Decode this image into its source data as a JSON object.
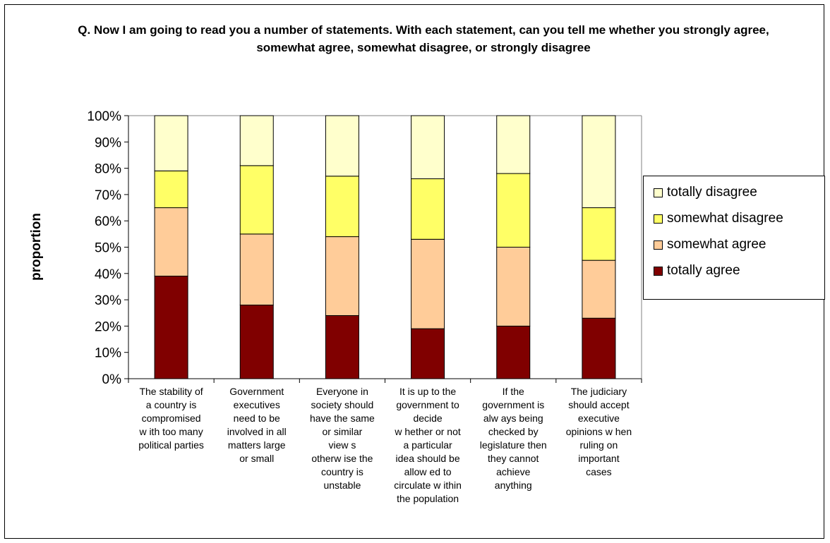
{
  "chart_data": {
    "type": "bar",
    "stacked": true,
    "title": "Q. Now I am going to read you a number of statements. With each statement, can you tell me whether you strongly agree, somewhat agree, somewhat disagree, or strongly disagree",
    "xlabel": "",
    "ylabel": "proportion",
    "ylim": [
      0,
      100
    ],
    "yticks": [
      "0%",
      "10%",
      "20%",
      "30%",
      "40%",
      "50%",
      "60%",
      "70%",
      "80%",
      "90%",
      "100%"
    ],
    "grid": false,
    "legend_position": "right",
    "categories": [
      "The stability of a country is compromised w ith too many political parties",
      "Government executives need to be involved in all matters large or small",
      "Everyone in society should have the same or similar view s otherw ise the country is unstable",
      "It is up to the government to decide w hether or not a particular idea should be allow ed to circulate w ithin the population",
      "If the government is alw ays being checked by legislature then they cannot achieve anything",
      "The judiciary should accept executive opinions w hen ruling on important cases"
    ],
    "category_lines": [
      [
        "The stability of",
        "a country is",
        "compromised",
        "w ith too many",
        "political parties"
      ],
      [
        "Government",
        "executives",
        "need to be",
        "involved in all",
        "matters large",
        "or small"
      ],
      [
        "Everyone in",
        "society should",
        "have the same",
        "or similar",
        "view s",
        "otherw ise the",
        "country is",
        "unstable"
      ],
      [
        "It is up to the",
        "government to",
        "decide",
        "w hether or not",
        "a particular",
        "idea should be",
        "allow ed to",
        "circulate w ithin",
        "the population"
      ],
      [
        "If the",
        "government is",
        "alw ays being",
        "checked by",
        "legislature then",
        "they cannot",
        "achieve",
        "anything"
      ],
      [
        "The judiciary",
        "should accept",
        "executive",
        "opinions w hen",
        "ruling on",
        "important",
        "cases"
      ]
    ],
    "series": [
      {
        "name": "totally agree",
        "color": "#800000",
        "values": [
          39,
          28,
          24,
          19,
          20,
          23
        ]
      },
      {
        "name": "somewhat agree",
        "color": "#FFCC99",
        "values": [
          26,
          27,
          30,
          34,
          30,
          22
        ]
      },
      {
        "name": "somewhat disagree",
        "color": "#FFFF66",
        "values": [
          14,
          26,
          23,
          23,
          28,
          20
        ]
      },
      {
        "name": "totally disagree",
        "color": "#FFFFCC",
        "values": [
          21,
          19,
          23,
          24,
          22,
          35
        ]
      }
    ],
    "legend_order": [
      "totally disagree",
      "somewhat disagree",
      "somewhat agree",
      "totally agree"
    ]
  }
}
